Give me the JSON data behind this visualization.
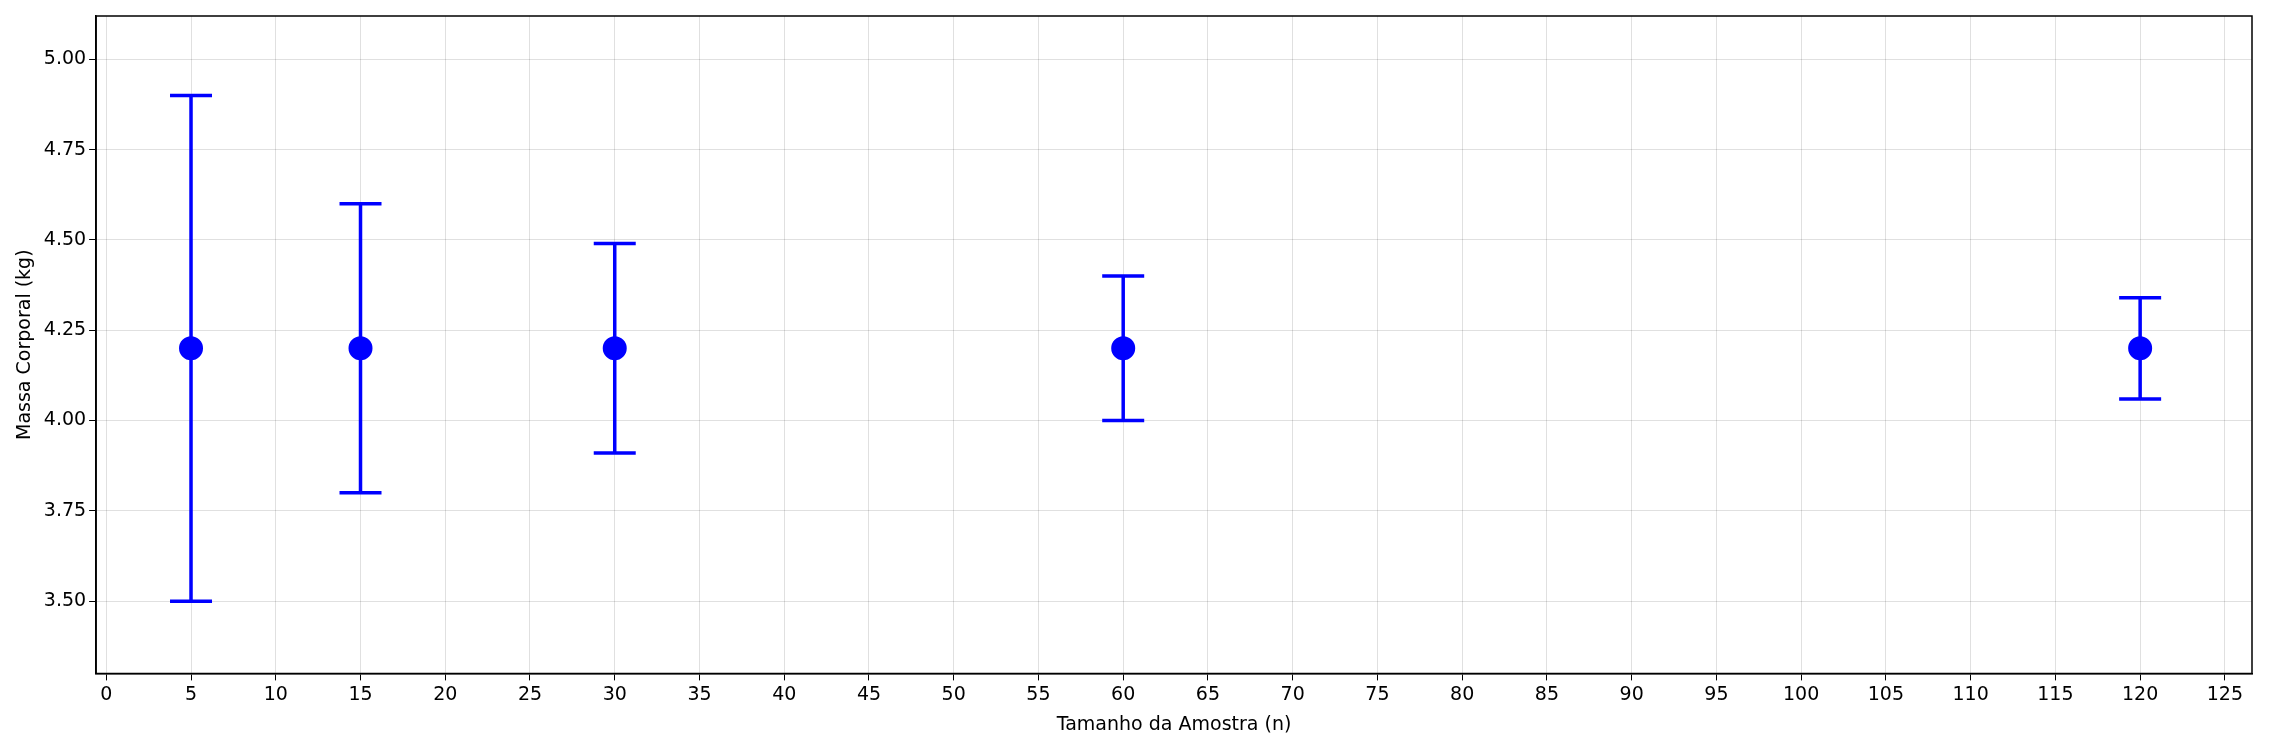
{
  "chart_data": {
    "type": "scatter",
    "xlabel": "Tamanho da Amostra (n)",
    "ylabel": "Massa Corporal (kg)",
    "x": [
      5,
      15,
      30,
      60,
      120
    ],
    "series": [
      {
        "color": "#0000ff",
        "values": [
          4.2,
          4.2,
          4.2,
          4.2,
          4.2
        ],
        "errors": [
          0.7,
          0.4,
          0.29,
          0.2,
          0.14
        ]
      }
    ],
    "xlim": [
      -0.6,
      126.6
    ],
    "xticks": [
      0,
      5,
      10,
      15,
      20,
      25,
      30,
      35,
      40,
      45,
      50,
      55,
      60,
      65,
      70,
      75,
      80,
      85,
      90,
      95,
      100,
      105,
      110,
      115,
      120,
      125
    ],
    "ylim": [
      3.3,
      5.12
    ],
    "yticks": [
      {
        "value": 3.5,
        "label": "3.50"
      },
      {
        "value": 3.75,
        "label": "3.75"
      },
      {
        "value": 4,
        "label": "4.00"
      },
      {
        "value": 4.25,
        "label": "4.25"
      },
      {
        "value": 4.5,
        "label": "4.50"
      },
      {
        "value": 4.75,
        "label": "4.75"
      },
      {
        "value": 5,
        "label": "5.00"
      }
    ],
    "grid": true,
    "legend": false,
    "marker": "circle"
  }
}
